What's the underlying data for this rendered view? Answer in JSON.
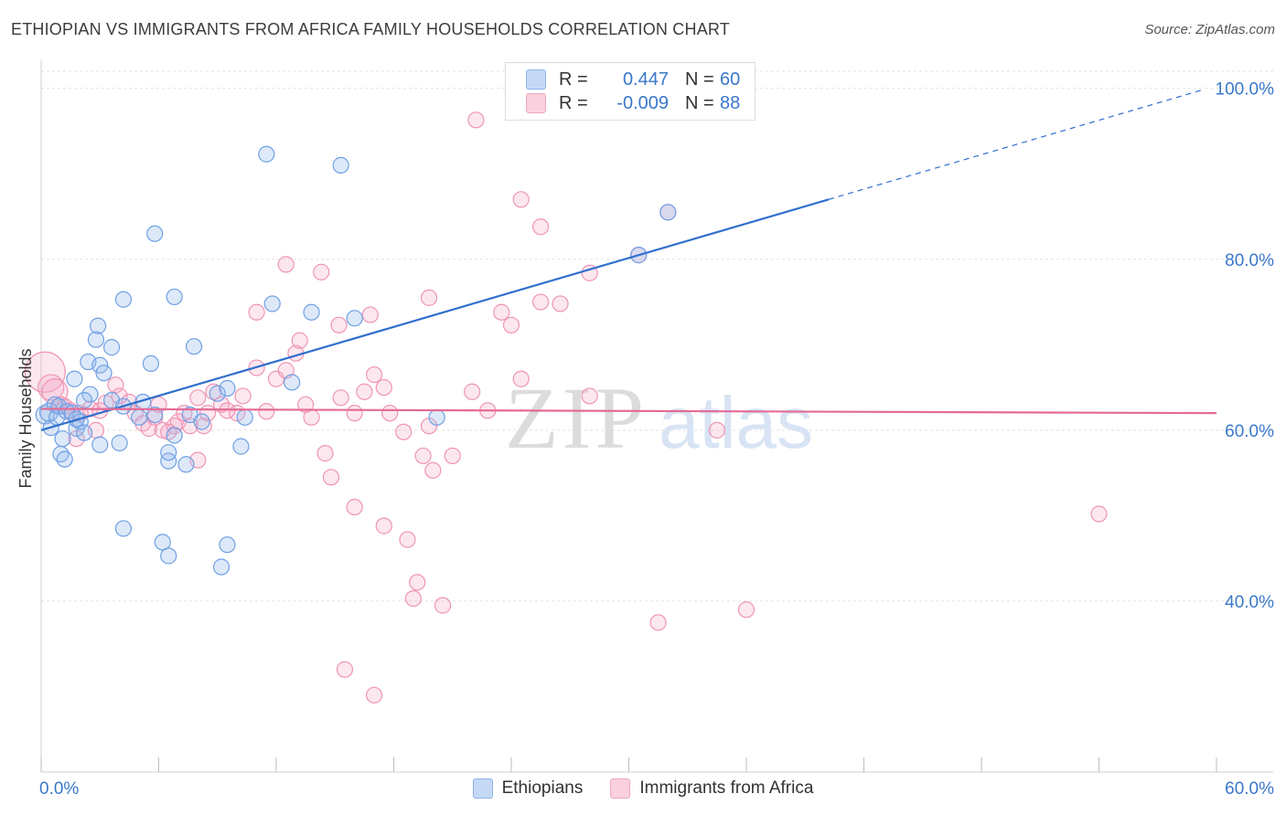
{
  "title": "ETHIOPIAN VS IMMIGRANTS FROM AFRICA FAMILY HOUSEHOLDS CORRELATION CHART",
  "source": "Source: ZipAtlas.com",
  "watermark": {
    "zip": "ZIP",
    "atlas": "atlas"
  },
  "legend": {
    "blue": {
      "r_label": "R =",
      "r_value": "0.447",
      "n_label": "N =",
      "n_value": "60"
    },
    "pink": {
      "r_label": "R =",
      "r_value": "-0.009",
      "n_label": "N =",
      "n_value": "88"
    }
  },
  "bottom_legend": {
    "blue": "Ethiopians",
    "pink": "Immigrants from Africa"
  },
  "colors": {
    "blue": "#6fa0e4",
    "blue_line": "#2f6fce",
    "pink": "#ef94b5",
    "pink_line": "#e46b96",
    "tick_text": "#3a78c9"
  },
  "chart_data": {
    "type": "scatter",
    "title": "ETHIOPIAN VS IMMIGRANTS FROM AFRICA FAMILY HOUSEHOLDS CORRELATION CHART",
    "xlabel": "",
    "ylabel": "Family Households",
    "xlim": [
      0,
      60
    ],
    "ylim": [
      20,
      102
    ],
    "x_tick_labels": [
      "0.0%",
      "60.0%"
    ],
    "y_ticks": [
      40,
      60,
      80,
      100
    ],
    "y_tick_labels": [
      "40.0%",
      "60.0%",
      "80.0%",
      "100.0%"
    ],
    "grid": true,
    "legend_position": "top-center",
    "series": [
      {
        "name": "Ethiopians",
        "color": "#6fa0e4",
        "trend": {
          "x0": 0,
          "y0": 60.0,
          "x1": 40.2,
          "y1": 87.0,
          "dash_to_x": 59.4,
          "dash_to_y": 99.9
        },
        "points": [
          [
            0.2,
            61.8
          ],
          [
            0.4,
            62.1
          ],
          [
            0.5,
            60.3
          ],
          [
            0.7,
            63.0
          ],
          [
            0.8,
            61.5
          ],
          [
            0.9,
            62.8
          ],
          [
            1.0,
            57.2
          ],
          [
            1.1,
            59.0
          ],
          [
            1.2,
            56.6
          ],
          [
            1.3,
            62.2
          ],
          [
            1.6,
            62.0
          ],
          [
            1.7,
            66.0
          ],
          [
            1.8,
            60.2
          ],
          [
            2.0,
            61.0
          ],
          [
            2.2,
            59.7
          ],
          [
            2.4,
            68.0
          ],
          [
            2.5,
            64.2
          ],
          [
            3.0,
            67.6
          ],
          [
            3.2,
            66.7
          ],
          [
            3.6,
            63.5
          ],
          [
            4.2,
            62.8
          ],
          [
            5.0,
            61.5
          ],
          [
            5.2,
            63.3
          ],
          [
            5.8,
            61.8
          ],
          [
            6.5,
            56.4
          ],
          [
            7.4,
            56.0
          ],
          [
            7.6,
            61.8
          ],
          [
            8.2,
            61.0
          ],
          [
            9.0,
            64.3
          ],
          [
            9.5,
            64.9
          ],
          [
            10.2,
            58.1
          ],
          [
            10.4,
            61.5
          ],
          [
            1.8,
            61.3
          ],
          [
            2.9,
            72.2
          ],
          [
            2.8,
            70.6
          ],
          [
            3.6,
            69.7
          ],
          [
            4.2,
            75.3
          ],
          [
            5.6,
            67.8
          ],
          [
            6.5,
            57.4
          ],
          [
            6.8,
            59.4
          ],
          [
            5.8,
            83.0
          ],
          [
            6.8,
            75.6
          ],
          [
            7.8,
            69.8
          ],
          [
            11.5,
            92.3
          ],
          [
            11.8,
            74.8
          ],
          [
            12.8,
            65.6
          ],
          [
            13.8,
            73.8
          ],
          [
            15.3,
            91.0
          ],
          [
            16.0,
            73.1
          ],
          [
            20.2,
            61.5
          ],
          [
            30.5,
            80.5
          ],
          [
            32.0,
            85.5
          ],
          [
            3.0,
            58.3
          ],
          [
            4.2,
            48.5
          ],
          [
            6.2,
            46.9
          ],
          [
            6.5,
            45.3
          ],
          [
            9.2,
            44.0
          ],
          [
            9.5,
            46.6
          ],
          [
            4.0,
            58.5
          ],
          [
            2.2,
            63.5
          ]
        ]
      },
      {
        "name": "Immigrants from Africa",
        "color": "#ef94b5",
        "trend": {
          "x0": 0,
          "y0": 62.5,
          "x1": 60,
          "y1": 62.0
        },
        "points": [
          [
            0.2,
            66.8
          ],
          [
            0.5,
            65.0
          ],
          [
            0.7,
            64.5
          ],
          [
            1.0,
            63.0
          ],
          [
            1.2,
            62.8
          ],
          [
            1.5,
            62.3
          ],
          [
            1.8,
            59.0
          ],
          [
            2.0,
            62.0
          ],
          [
            2.5,
            62.5
          ],
          [
            2.8,
            60.0
          ],
          [
            3.0,
            62.3
          ],
          [
            3.3,
            63.2
          ],
          [
            3.8,
            65.3
          ],
          [
            4.0,
            64.0
          ],
          [
            4.5,
            63.3
          ],
          [
            4.8,
            62.0
          ],
          [
            5.2,
            60.8
          ],
          [
            5.5,
            60.2
          ],
          [
            5.8,
            61.5
          ],
          [
            6.0,
            63.0
          ],
          [
            6.2,
            60.0
          ],
          [
            6.5,
            59.8
          ],
          [
            6.8,
            60.5
          ],
          [
            7.0,
            61.0
          ],
          [
            7.3,
            62.0
          ],
          [
            7.6,
            60.5
          ],
          [
            8.0,
            63.8
          ],
          [
            8.3,
            60.5
          ],
          [
            8.5,
            62.0
          ],
          [
            8.8,
            64.5
          ],
          [
            9.2,
            63.0
          ],
          [
            9.5,
            62.3
          ],
          [
            10.0,
            62.0
          ],
          [
            10.3,
            64.0
          ],
          [
            11.0,
            67.3
          ],
          [
            11.5,
            62.2
          ],
          [
            12.0,
            66.0
          ],
          [
            12.5,
            67.0
          ],
          [
            13.0,
            69.0
          ],
          [
            13.5,
            63.0
          ],
          [
            13.8,
            61.5
          ],
          [
            14.5,
            57.3
          ],
          [
            14.8,
            54.5
          ],
          [
            15.3,
            63.8
          ],
          [
            16.0,
            62.0
          ],
          [
            16.5,
            64.5
          ],
          [
            17.0,
            66.5
          ],
          [
            17.5,
            65.0
          ],
          [
            17.8,
            62.0
          ],
          [
            18.5,
            59.8
          ],
          [
            19.5,
            57.0
          ],
          [
            19.8,
            75.5
          ],
          [
            20.0,
            55.3
          ],
          [
            21.0,
            57.0
          ],
          [
            22.0,
            64.5
          ],
          [
            22.8,
            62.3
          ],
          [
            23.5,
            73.8
          ],
          [
            24.0,
            72.3
          ],
          [
            24.5,
            66.0
          ],
          [
            25.5,
            83.8
          ],
          [
            26.5,
            74.8
          ],
          [
            28.0,
            64.0
          ],
          [
            30.5,
            80.5
          ],
          [
            32.0,
            85.5
          ],
          [
            31.5,
            37.5
          ],
          [
            34.5,
            60.0
          ],
          [
            36.0,
            39.0
          ],
          [
            54.0,
            50.2
          ],
          [
            22.2,
            96.3
          ],
          [
            24.5,
            87.0
          ],
          [
            12.5,
            79.4
          ],
          [
            14.3,
            78.5
          ],
          [
            11.0,
            73.8
          ],
          [
            13.2,
            70.5
          ],
          [
            15.2,
            72.3
          ],
          [
            16.8,
            73.5
          ],
          [
            25.5,
            75.0
          ],
          [
            28.0,
            78.4
          ],
          [
            16.0,
            51.0
          ],
          [
            17.5,
            48.8
          ],
          [
            18.7,
            47.2
          ],
          [
            19.2,
            42.2
          ],
          [
            19.0,
            40.3
          ],
          [
            20.5,
            39.5
          ],
          [
            15.5,
            32.0
          ],
          [
            17.0,
            29.0
          ],
          [
            19.8,
            60.5
          ],
          [
            8.0,
            56.5
          ]
        ]
      }
    ]
  }
}
